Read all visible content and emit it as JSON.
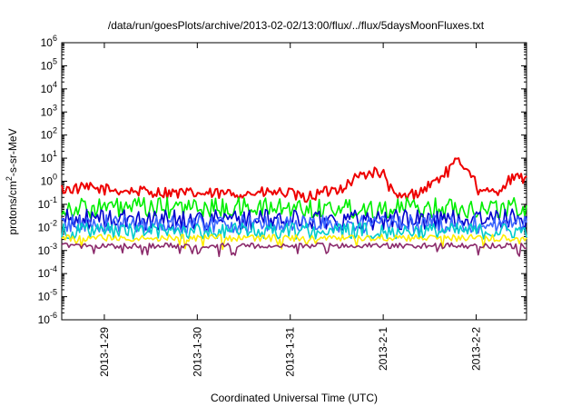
{
  "chart_data": {
    "type": "line",
    "title": "/data/run/goesPlots/archive/2013-02-02/13:00/flux/../flux/5daysMoonFluxes.txt",
    "xlabel": "Coordinated Universal Time (UTC)",
    "ylabel": {
      "pre": "protons/cm",
      "sup": "2",
      "post": "-s-sr-MeV"
    },
    "y_scale": "log",
    "ylim": [
      "1e-6",
      "1e6"
    ],
    "y_ticks": [
      {
        "base": "10",
        "exp": "-6"
      },
      {
        "base": "10",
        "exp": "-5"
      },
      {
        "base": "10",
        "exp": "-4"
      },
      {
        "base": "10",
        "exp": "-3"
      },
      {
        "base": "10",
        "exp": "-2"
      },
      {
        "base": "10",
        "exp": "-1"
      },
      {
        "base": "10",
        "exp": "0"
      },
      {
        "base": "10",
        "exp": "1"
      },
      {
        "base": "10",
        "exp": "2"
      },
      {
        "base": "10",
        "exp": "3"
      },
      {
        "base": "10",
        "exp": "4"
      },
      {
        "base": "10",
        "exp": "5"
      },
      {
        "base": "10",
        "exp": "6"
      }
    ],
    "xlim": [
      "2013-01-28 13:00",
      "2013-02-02 13:00"
    ],
    "x_ticks": [
      "2013-1-29",
      "2013-1-30",
      "2013-1-31",
      "2013-2-1",
      "2013-2-2"
    ],
    "grid": false,
    "series": [
      {
        "color": "#ee0000",
        "x": [
          "2013-01-28 13:00",
          "2013-01-28 20:00",
          "2013-01-29 04:00",
          "2013-01-29 12:00",
          "2013-01-29 20:00",
          "2013-01-30 04:00",
          "2013-01-30 12:00",
          "2013-01-30 20:00",
          "2013-01-31 00:00",
          "2013-01-31 03:00",
          "2013-01-31 08:00",
          "2013-01-31 14:00",
          "2013-01-31 17:00",
          "2013-01-31 21:00",
          "2013-02-01 00:00",
          "2013-02-01 03:00",
          "2013-02-01 06:00",
          "2013-02-01 10:00",
          "2013-02-01 14:00",
          "2013-02-01 17:00",
          "2013-02-01 19:00",
          "2013-02-01 22:00",
          "2013-02-02 01:00",
          "2013-02-02 05:00",
          "2013-02-02 09:00",
          "2013-02-02 13:00"
        ],
        "y": [
          0.45,
          0.5,
          0.4,
          0.35,
          0.3,
          0.28,
          0.3,
          0.32,
          0.3,
          0.18,
          0.3,
          0.6,
          1.5,
          2.5,
          2.0,
          0.2,
          0.22,
          0.4,
          1.2,
          3.0,
          7.0,
          4.0,
          0.3,
          0.35,
          1.2,
          1.5
        ],
        "band": 0.25
      },
      {
        "color": "#00ee00",
        "x": [
          "2013-01-28 13:00",
          "2013-02-02 13:00"
        ],
        "y": [
          0.07,
          0.07
        ],
        "band": 0.45
      },
      {
        "color": "#0000cc",
        "x": [
          "2013-01-28 13:00",
          "2013-02-02 13:00"
        ],
        "y": [
          0.022,
          0.022
        ],
        "band": 0.45
      },
      {
        "color": "#3a66ff",
        "x": [
          "2013-01-28 13:00",
          "2013-02-02 13:00"
        ],
        "y": [
          0.014,
          0.014
        ],
        "band": 0.4
      },
      {
        "color": "#00cccc",
        "x": [
          "2013-01-28 13:00",
          "2013-02-02 13:00"
        ],
        "y": [
          0.007,
          0.007
        ],
        "band": 0.35
      },
      {
        "color": "#ffee00",
        "x": [
          "2013-01-28 13:00",
          "2013-02-02 13:00"
        ],
        "y": [
          0.0035,
          0.0035
        ],
        "band": 0.15
      },
      {
        "color": "#8b2a6b",
        "x": [
          "2013-01-28 13:00",
          "2013-02-02 13:00"
        ],
        "y": [
          0.0016,
          0.0016
        ],
        "band": 0.12
      }
    ]
  }
}
